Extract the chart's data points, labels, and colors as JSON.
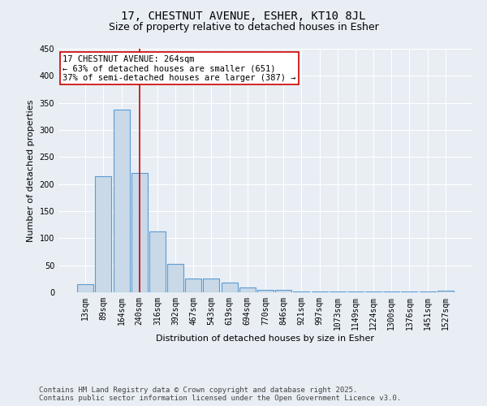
{
  "title": "17, CHESTNUT AVENUE, ESHER, KT10 8JL",
  "subtitle": "Size of property relative to detached houses in Esher",
  "xlabel": "Distribution of detached houses by size in Esher",
  "ylabel": "Number of detached properties",
  "categories": [
    "13sqm",
    "89sqm",
    "164sqm",
    "240sqm",
    "316sqm",
    "392sqm",
    "467sqm",
    "543sqm",
    "619sqm",
    "694sqm",
    "770sqm",
    "846sqm",
    "921sqm",
    "997sqm",
    "1073sqm",
    "1149sqm",
    "1224sqm",
    "1300sqm",
    "1376sqm",
    "1451sqm",
    "1527sqm"
  ],
  "values": [
    15,
    215,
    338,
    220,
    112,
    53,
    26,
    25,
    18,
    9,
    5,
    4,
    2,
    2,
    2,
    1,
    1,
    1,
    1,
    1,
    3
  ],
  "bar_color": "#c9d9e8",
  "bar_edge_color": "#5b9bd5",
  "red_line_index": 3,
  "annotation_line1": "17 CHESTNUT AVENUE: 264sqm",
  "annotation_line2": "← 63% of detached houses are smaller (651)",
  "annotation_line3": "37% of semi-detached houses are larger (387) →",
  "annotation_box_color": "#ffffff",
  "annotation_border_color": "#cc0000",
  "ylim": [
    0,
    450
  ],
  "yticks": [
    0,
    50,
    100,
    150,
    200,
    250,
    300,
    350,
    400,
    450
  ],
  "background_color": "#e8eef4",
  "grid_color": "#ffffff",
  "footer_text": "Contains HM Land Registry data © Crown copyright and database right 2025.\nContains public sector information licensed under the Open Government Licence v3.0.",
  "title_fontsize": 10,
  "subtitle_fontsize": 9,
  "axis_label_fontsize": 8,
  "tick_fontsize": 7,
  "annotation_fontsize": 7.5,
  "footer_fontsize": 6.5
}
